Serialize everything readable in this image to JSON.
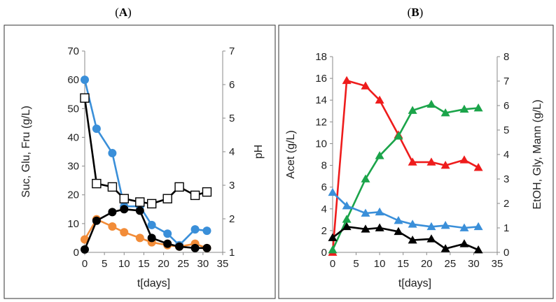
{
  "panel_labels": [
    {
      "open": "(",
      "letter": "A",
      "close": ")"
    },
    {
      "open": "(",
      "letter": "B",
      "close": ")"
    }
  ],
  "colors": {
    "blue": "#3A8FD9",
    "orange": "#F28C38",
    "black": "#000000",
    "red": "#EE1C1C",
    "green": "#1BA44A",
    "blue_tri": "#3A8FD9"
  },
  "chart_data": [
    {
      "id": "A",
      "type": "line",
      "title": "",
      "xlabel": "t[days]",
      "ylabel": "Suc, Glu, Fru (g/L)",
      "y2label": "pH",
      "xlim": [
        0,
        35
      ],
      "xticks": [
        0,
        5,
        10,
        15,
        20,
        25,
        30,
        35
      ],
      "ylim": [
        0,
        70
      ],
      "yticks": [
        0,
        10,
        20,
        30,
        40,
        50,
        60,
        70
      ],
      "y2lim": [
        1,
        7
      ],
      "y2ticks": [
        1,
        2,
        3,
        4,
        5,
        6,
        7
      ],
      "grid": false,
      "series": [
        {
          "name": "Suc",
          "axis": "left",
          "marker": "circle",
          "color": "blue",
          "x": [
            0,
            3,
            7,
            10,
            14,
            17,
            21,
            24,
            28,
            31
          ],
          "y": [
            60,
            43,
            34.5,
            16,
            16,
            9.5,
            6.5,
            2.5,
            8,
            7.5
          ]
        },
        {
          "name": "Glu",
          "axis": "left",
          "marker": "circle",
          "color": "orange",
          "x": [
            0,
            3,
            7,
            10,
            14,
            17,
            21,
            24,
            28,
            31
          ],
          "y": [
            4.5,
            11.5,
            9,
            7,
            5,
            3.5,
            2.5,
            2,
            3,
            1.5
          ]
        },
        {
          "name": "Fru",
          "axis": "left",
          "marker": "circle",
          "color": "black",
          "x": [
            0,
            3,
            7,
            10,
            14,
            17,
            21,
            24,
            28,
            31
          ],
          "y": [
            1,
            11,
            14,
            15,
            14.5,
            5,
            3,
            2,
            1.5,
            1.5
          ]
        },
        {
          "name": "pH",
          "axis": "right",
          "marker": "square-open",
          "color": "black",
          "x": [
            0,
            3,
            7,
            10,
            14,
            17,
            21,
            24,
            28,
            31
          ],
          "y": [
            5.6,
            3.05,
            2.95,
            2.6,
            2.5,
            2.45,
            2.6,
            2.95,
            2.7,
            2.8
          ]
        }
      ]
    },
    {
      "id": "B",
      "type": "line",
      "title": "",
      "xlabel": "t[days]",
      "ylabel": "Acet (g/L)",
      "y2label": "EtOH, Gly, Mann (g/L)",
      "xlim": [
        0,
        35
      ],
      "xticks": [
        0,
        5,
        10,
        15,
        20,
        25,
        30,
        35
      ],
      "ylim": [
        0,
        18
      ],
      "yticks": [
        0,
        2,
        4,
        6,
        8,
        10,
        12,
        14,
        16,
        18
      ],
      "y2lim": [
        0,
        8
      ],
      "y2ticks": [
        0,
        1,
        2,
        3,
        4,
        5,
        6,
        7,
        8
      ],
      "grid": false,
      "series": [
        {
          "name": "Acet",
          "axis": "left",
          "marker": "triangle",
          "color": "red",
          "x": [
            0,
            3,
            7,
            10,
            14,
            17,
            21,
            24,
            28,
            31
          ],
          "y": [
            0,
            15.8,
            15.3,
            14,
            10.8,
            8.3,
            8.3,
            8,
            8.5,
            7.8
          ]
        },
        {
          "name": "EtOH",
          "axis": "right",
          "marker": "triangle",
          "color": "green",
          "x": [
            0,
            3,
            7,
            10,
            14,
            17,
            21,
            24,
            28,
            31
          ],
          "y": [
            0.1,
            1.35,
            3.0,
            3.95,
            4.75,
            5.8,
            6.05,
            5.7,
            5.85,
            5.9
          ]
        },
        {
          "name": "Gly",
          "axis": "right",
          "marker": "triangle",
          "color": "blue_tri",
          "x": [
            0,
            3,
            7,
            10,
            14,
            17,
            21,
            24,
            28,
            31
          ],
          "y": [
            2.45,
            1.9,
            1.6,
            1.65,
            1.3,
            1.15,
            1.05,
            1.1,
            1.0,
            1.05
          ]
        },
        {
          "name": "Mann",
          "axis": "right",
          "marker": "triangle",
          "color": "black",
          "x": [
            0,
            3,
            7,
            10,
            14,
            17,
            21,
            24,
            28,
            31
          ],
          "y": [
            0.6,
            1.05,
            0.95,
            1.0,
            0.85,
            0.5,
            0.55,
            0.15,
            0.35,
            0.1
          ]
        }
      ]
    }
  ]
}
